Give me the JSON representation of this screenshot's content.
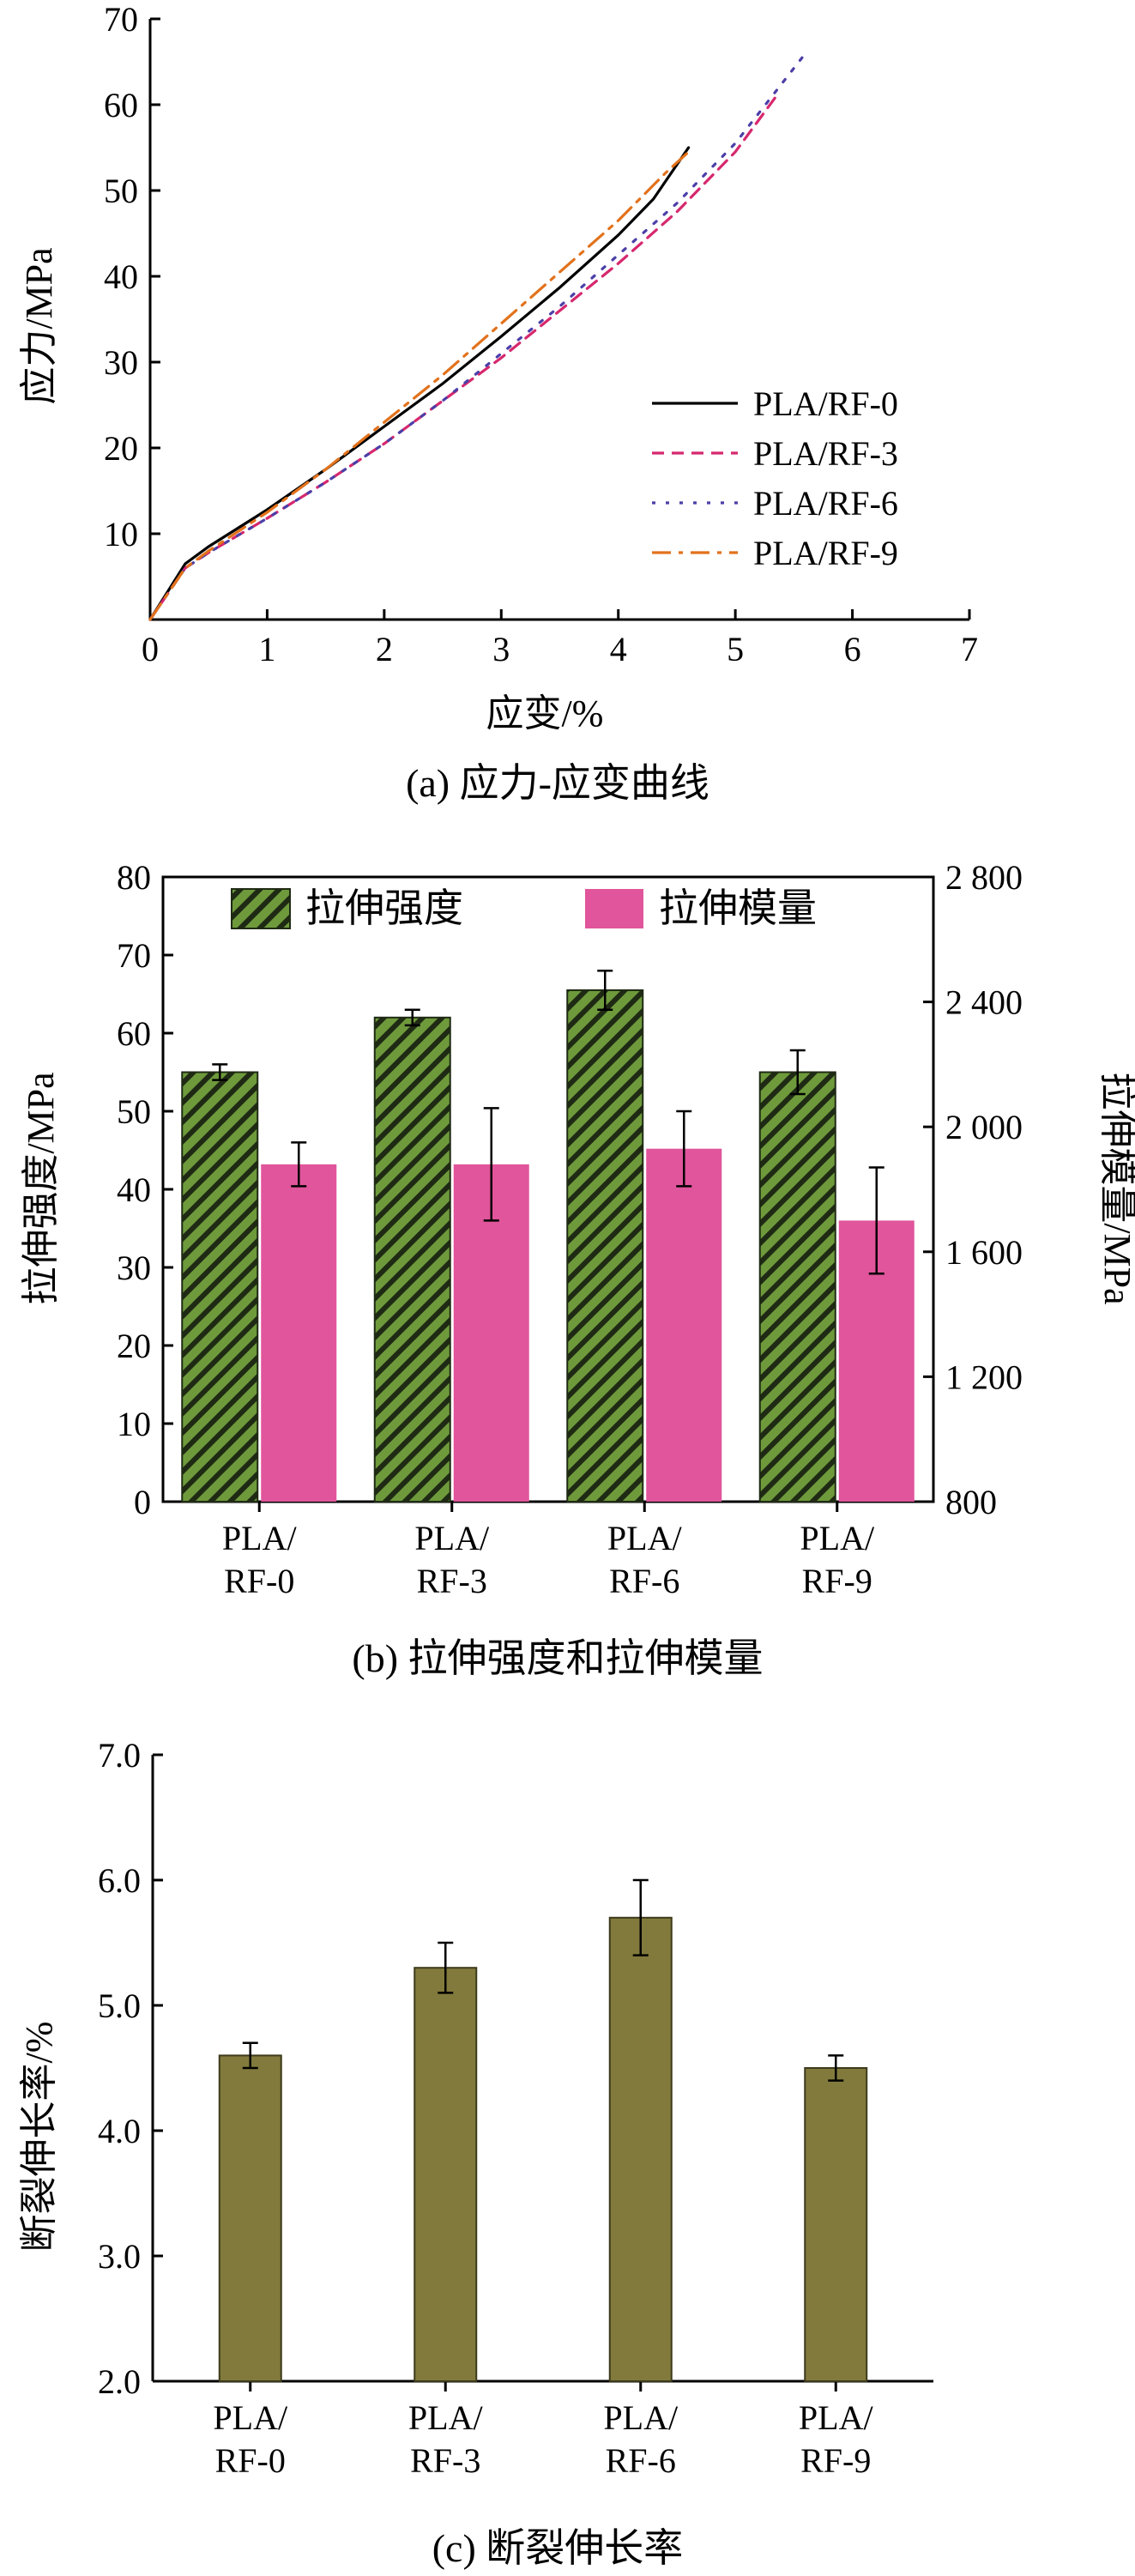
{
  "chart_data": [
    {
      "type": "line",
      "caption": "(a) 应力-应变曲线",
      "xlabel": "应变/%",
      "ylabel": "应力/MPa",
      "xlim": [
        0,
        7
      ],
      "ylim": [
        0,
        70
      ],
      "xticks": [
        "0",
        "1",
        "2",
        "3",
        "4",
        "5",
        "6",
        "7"
      ],
      "yticks": [
        "10",
        "20",
        "30",
        "40",
        "50",
        "60",
        "70"
      ],
      "legend_position": "bottom-right",
      "series": [
        {
          "name": "PLA/RF-0",
          "color": "#000000",
          "dash": "solid",
          "points": [
            [
              0,
              0
            ],
            [
              0.3,
              6.5
            ],
            [
              0.5,
              8.5
            ],
            [
              1,
              12.8
            ],
            [
              1.5,
              17.5
            ],
            [
              2,
              22.5
            ],
            [
              2.5,
              27.5
            ],
            [
              3,
              33
            ],
            [
              3.5,
              38.7
            ],
            [
              4,
              44.8
            ],
            [
              4.3,
              49
            ],
            [
              4.6,
              55
            ]
          ]
        },
        {
          "name": "PLA/RF-3",
          "color": "#d6286e",
          "dash": "dashed",
          "points": [
            [
              0,
              0
            ],
            [
              0.3,
              6
            ],
            [
              0.5,
              7.8
            ],
            [
              1,
              11.8
            ],
            [
              1.5,
              16
            ],
            [
              2,
              20.5
            ],
            [
              2.5,
              25.5
            ],
            [
              3,
              30.5
            ],
            [
              3.5,
              36
            ],
            [
              4,
              41.5
            ],
            [
              4.5,
              47.5
            ],
            [
              5,
              54.5
            ],
            [
              5.35,
              61
            ]
          ]
        },
        {
          "name": "PLA/RF-6",
          "color": "#4b3fa8",
          "dash": "dotted",
          "points": [
            [
              0,
              0
            ],
            [
              0.3,
              6
            ],
            [
              0.5,
              7.8
            ],
            [
              1,
              11.8
            ],
            [
              1.5,
              16
            ],
            [
              2,
              20.5
            ],
            [
              2.5,
              25.5
            ],
            [
              3,
              31
            ],
            [
              3.5,
              36.5
            ],
            [
              4,
              42.5
            ],
            [
              4.5,
              48.5
            ],
            [
              5,
              55.5
            ],
            [
              5.6,
              66
            ]
          ]
        },
        {
          "name": "PLA/RF-9",
          "color": "#e2721c",
          "dash": "dashdot",
          "points": [
            [
              0,
              0
            ],
            [
              0.3,
              6
            ],
            [
              0.5,
              8
            ],
            [
              1,
              12.5
            ],
            [
              1.5,
              17.5
            ],
            [
              2,
              23
            ],
            [
              2.5,
              28.5
            ],
            [
              3,
              34.5
            ],
            [
              3.5,
              40.5
            ],
            [
              4,
              46.5
            ],
            [
              4.4,
              52
            ],
            [
              4.6,
              54.5
            ]
          ]
        }
      ]
    },
    {
      "type": "bar",
      "caption": "(b) 拉伸强度和拉伸模量",
      "categories": [
        [
          "PLA/",
          "RF-0"
        ],
        [
          "PLA/",
          "RF-3"
        ],
        [
          "PLA/",
          "RF-6"
        ],
        [
          "PLA/",
          "RF-9"
        ]
      ],
      "ylabel": "拉伸强度/MPa",
      "ylabel_right": "拉伸模量/MPa",
      "ylim": [
        0,
        80
      ],
      "ylim_right": [
        800,
        2800
      ],
      "yticks": [
        "0",
        "10",
        "20",
        "30",
        "40",
        "50",
        "60",
        "70",
        "80"
      ],
      "yticks_right": [
        "800",
        "1 200",
        "1 600",
        "2 000",
        "2 400",
        "2 800"
      ],
      "legend_position": "top",
      "series": [
        {
          "name": "拉伸强度",
          "axis": "left",
          "color": "#6e9a3c",
          "pattern": "hatched",
          "values": [
            55,
            62,
            65.5,
            55
          ],
          "errors": [
            1,
            1,
            2.5,
            2.8
          ]
        },
        {
          "name": "拉伸模量",
          "axis": "right",
          "color": "#e0559b",
          "values": [
            1880,
            1880,
            1930,
            1700
          ],
          "errors": [
            70,
            180,
            120,
            170
          ]
        }
      ]
    },
    {
      "type": "bar",
      "caption": "(c) 断裂伸长率",
      "categories": [
        [
          "PLA/",
          "RF-0"
        ],
        [
          "PLA/",
          "RF-3"
        ],
        [
          "PLA/",
          "RF-6"
        ],
        [
          "PLA/",
          "RF-9"
        ]
      ],
      "ylabel": "断裂伸长率/%",
      "ylim": [
        2.0,
        7.0
      ],
      "yticks": [
        "2.0",
        "3.0",
        "4.0",
        "5.0",
        "6.0",
        "7.0"
      ],
      "series": [
        {
          "color": "#827a3c",
          "values": [
            4.6,
            5.3,
            5.7,
            4.5
          ],
          "errors": [
            0.1,
            0.2,
            0.3,
            0.1
          ]
        }
      ]
    }
  ]
}
